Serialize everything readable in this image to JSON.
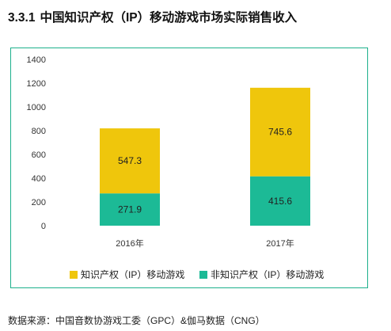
{
  "header": {
    "section_number": "3.3.1",
    "title": "中国知识产权（IP）移动游戏市场实际销售收入"
  },
  "colors": {
    "ip": "#efc60c",
    "non_ip": "#1cba96",
    "frame": "#1db08c"
  },
  "chart_data": {
    "type": "bar",
    "stacked": true,
    "categories": [
      "2016年",
      "2017年"
    ],
    "series": [
      {
        "name": "非知识产权（IP）移动游戏",
        "values": [
          271.9,
          415.6
        ],
        "labels": [
          "271.9",
          "415.6"
        ]
      },
      {
        "name": "知识产权（IP）移动游戏",
        "values": [
          547.3,
          745.6
        ],
        "labels": [
          "547.3",
          "745.6"
        ]
      }
    ],
    "ylim": [
      0,
      1400
    ],
    "yticks": [
      "0",
      "200",
      "400",
      "600",
      "800",
      "1000",
      "1200",
      "1400"
    ],
    "grid": false,
    "legend_position": "bottom"
  },
  "legend": {
    "ip_label": "知识产权（IP）移动游戏",
    "non_ip_label": "非知识产权（IP）移动游戏"
  },
  "footer": {
    "source": "数据来源：中国音数协游戏工委（GPC）&伽马数据（CNG）"
  }
}
